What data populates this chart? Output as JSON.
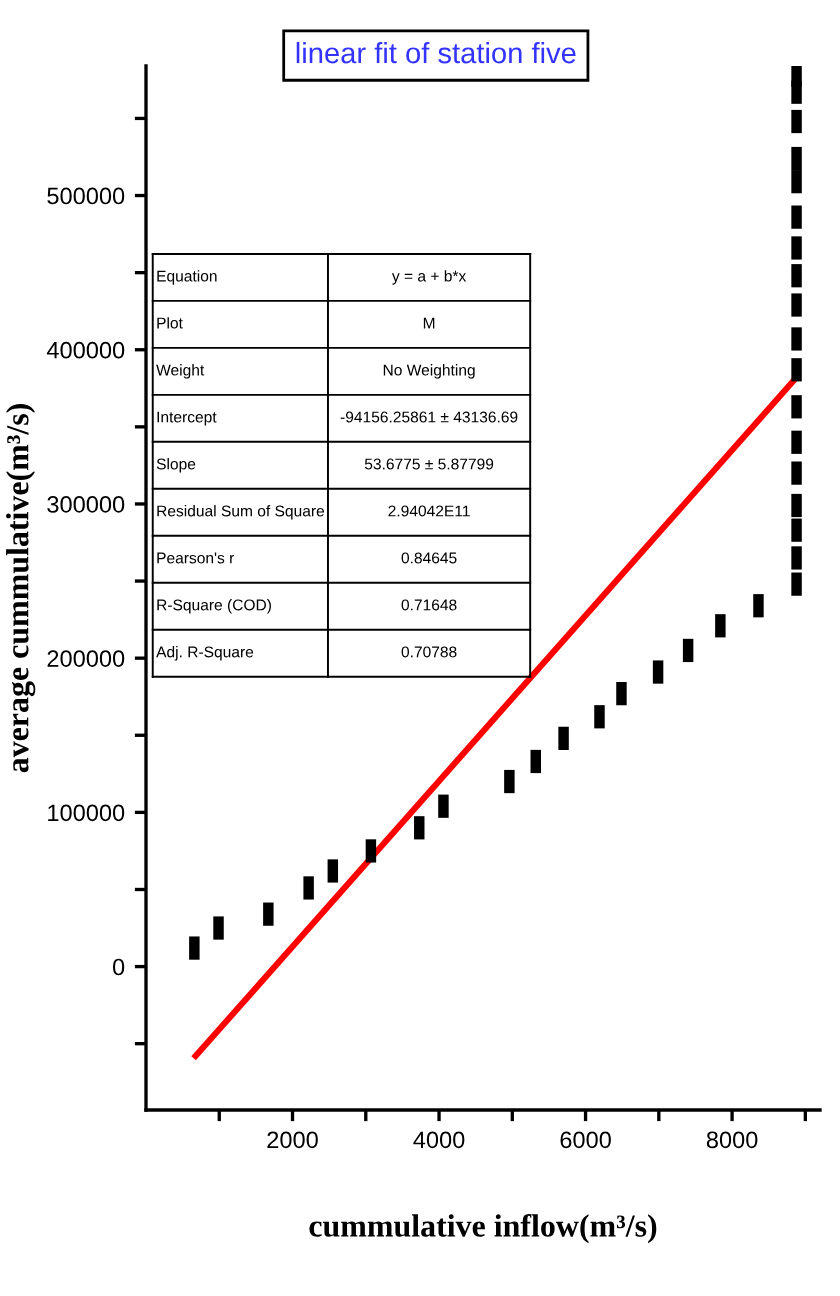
{
  "chart_data": {
    "type": "scatter",
    "title": "linear fit of station five",
    "xlabel": "cummulative inflow(m³/s)",
    "ylabel": "average cummulative(m³/s)",
    "xlim": [
      0,
      9200
    ],
    "ylim": [
      -93000,
      584000
    ],
    "xticks": [
      {
        "value": 1000,
        "label": null
      },
      2000,
      {
        "value": 3000,
        "label": null
      },
      4000,
      {
        "value": 5000,
        "label": null
      },
      6000,
      {
        "value": 7000,
        "label": null
      },
      8000,
      {
        "value": 9000,
        "label": null
      }
    ],
    "yticks": [
      {
        "value": -50000,
        "label": null
      },
      0,
      {
        "value": 50000,
        "label": null
      },
      100000,
      {
        "value": 150000,
        "label": null
      },
      200000,
      {
        "value": 250000,
        "label": null
      },
      300000,
      {
        "value": 350000,
        "label": null
      },
      400000,
      {
        "value": 450000,
        "label": null
      },
      500000,
      {
        "value": 550000,
        "label": null
      }
    ],
    "grid": false,
    "legend": false,
    "series": [
      {
        "marker": "square",
        "color": "#000000",
        "x": [
          660,
          990,
          1670,
          2220,
          2550,
          3070,
          3730,
          4060,
          4960,
          5320,
          5700,
          6190,
          6490,
          6990,
          7400,
          7840,
          8360,
          8880,
          8880,
          8880,
          8880,
          8880,
          8880,
          8880,
          8880,
          8880,
          8880,
          8880,
          8880,
          8880,
          8880,
          8880,
          8880,
          8880,
          8880
        ],
        "values": [
          12000,
          25000,
          34000,
          51000,
          62000,
          75000,
          90000,
          104000,
          120000,
          133000,
          148000,
          162000,
          177000,
          191000,
          205000,
          221000,
          234000,
          578000,
          567000,
          548000,
          524000,
          509000,
          486000,
          466000,
          448000,
          429000,
          407000,
          387000,
          363000,
          340000,
          320000,
          299000,
          283000,
          265000,
          248000
        ]
      },
      {
        "type": "line",
        "color": "#ff0000",
        "x": [
          677,
          8877
        ],
        "values": [
          -58000,
          382000
        ],
        "line_style": "solid"
      }
    ],
    "annotations": [
      "Equation",
      "y = a + b*x",
      "Plot",
      "M",
      "Weight",
      "No Weighting",
      "Intercept",
      "-94156.25861 ± 43136.69",
      "Slope",
      "53.6775 ± 5.87799",
      "Residual Sum of Square",
      "2.94042E11",
      "Pearson's r",
      "0.84645",
      "R-Square (COD)",
      "0.71648",
      "Adj. R-Square",
      "0.70788"
    ]
  }
}
